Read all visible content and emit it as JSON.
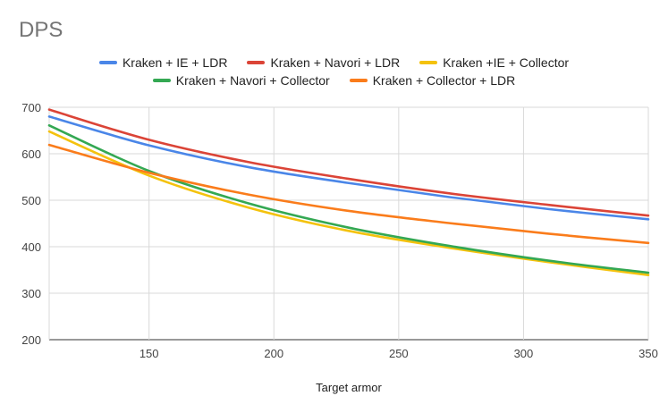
{
  "chart_data": {
    "type": "line",
    "title": "DPS",
    "xlabel": "Target armor",
    "ylabel": "",
    "xlim": [
      110,
      350
    ],
    "ylim": [
      200,
      700
    ],
    "xticks": [
      150,
      200,
      250,
      300,
      350
    ],
    "yticks": [
      200,
      300,
      400,
      500,
      600,
      700
    ],
    "grid": true,
    "legend_position": "top",
    "x": [
      110,
      150,
      190,
      230,
      270,
      310,
      350
    ],
    "series": [
      {
        "name": "Kraken + IE + LDR",
        "color": "#4a86e8",
        "values": [
          680,
          618,
          571,
          537,
          507,
          481,
          459
        ]
      },
      {
        "name": "Kraken + Navori + LDR",
        "color": "#db4437",
        "values": [
          695,
          630,
          582,
          546,
          515,
          490,
          467
        ]
      },
      {
        "name": "Kraken +IE + Collector",
        "color": "#f4c20d",
        "values": [
          648,
          553,
          484,
          434,
          398,
          367,
          339
        ]
      },
      {
        "name": "Kraken + Navori + Collector",
        "color": "#34a853",
        "values": [
          661,
          563,
          493,
          441,
          402,
          370,
          344
        ]
      },
      {
        "name": "Kraken + Collector + LDR",
        "color": "#fa7c1b",
        "values": [
          619,
          559,
          512,
          477,
          451,
          428,
          408
        ]
      }
    ],
    "legend_rows": [
      [
        0,
        1,
        2
      ],
      [
        3,
        4
      ]
    ]
  }
}
